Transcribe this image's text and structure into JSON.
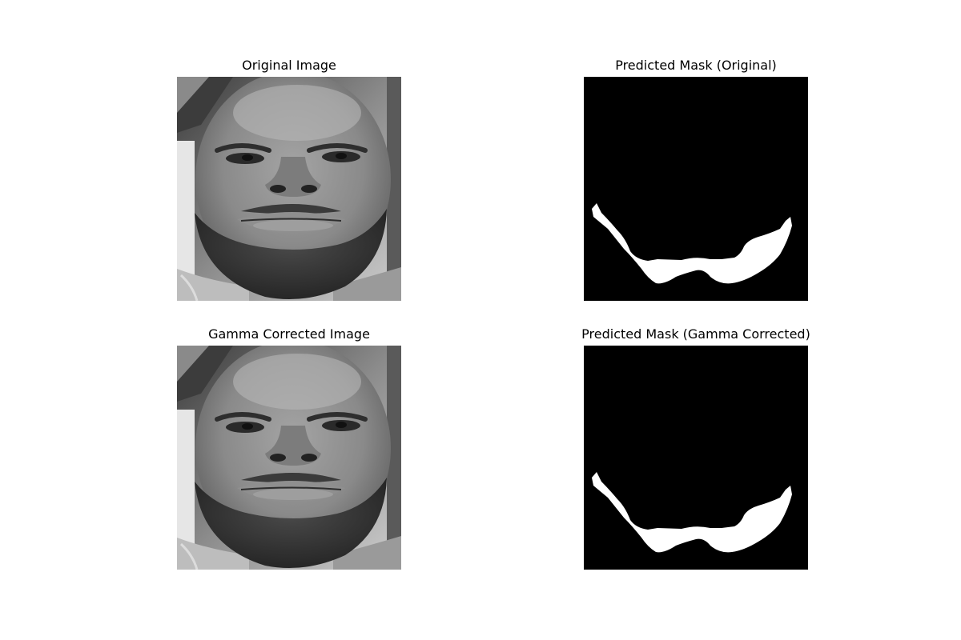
{
  "panels": {
    "top_left": {
      "title": "Original Image",
      "content": "grayscale face photo"
    },
    "top_right": {
      "title": "Predicted Mask (Original)",
      "content": "binary mask"
    },
    "bottom_left": {
      "title": "Gamma Corrected Image",
      "content": "grayscale face photo"
    },
    "bottom_right": {
      "title": "Predicted Mask (Gamma Corrected)",
      "content": "binary mask"
    }
  },
  "colors": {
    "mask_background": "#000000",
    "mask_foreground": "#ffffff",
    "page_background": "#ffffff"
  }
}
